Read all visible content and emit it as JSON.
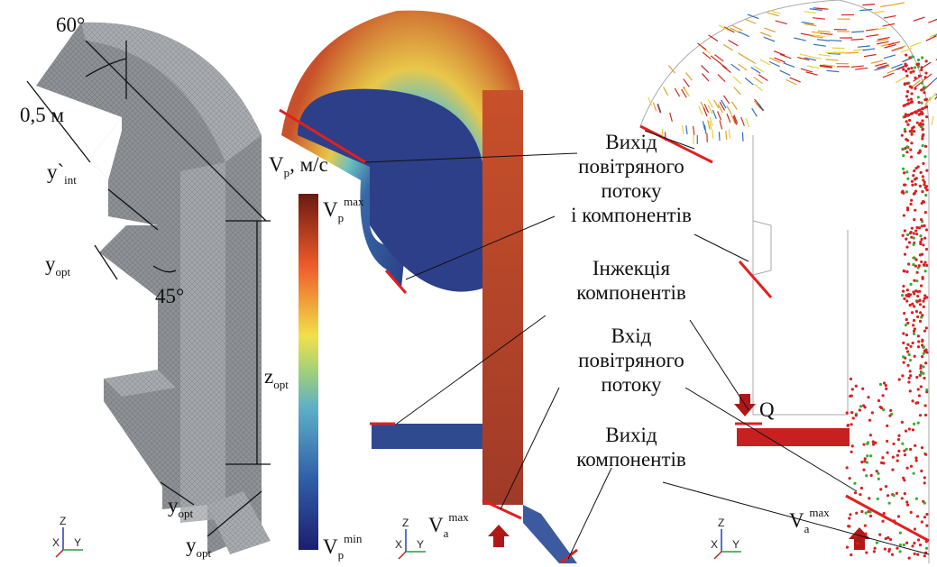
{
  "mesh_panel": {
    "angle_top": "60°",
    "length": "0,5 м",
    "y_int": {
      "base": "y`",
      "sub": "int"
    },
    "y_opt_side": {
      "base": "y",
      "sub": "opt"
    },
    "angle_side": "45°",
    "z_opt": {
      "base": "z",
      "sub": "opt"
    },
    "y_opt_bottom_1": {
      "base": "y",
      "sub": "opt"
    },
    "y_opt_bottom_2": {
      "base": "y",
      "sub": "opt"
    }
  },
  "colorbar": {
    "title": {
      "base": "V",
      "sub": "p",
      "suffix": ", м/с"
    },
    "max": {
      "base": "V",
      "sub": "p",
      "sup": "max"
    },
    "min": {
      "base": "V",
      "sub": "p",
      "sup": "min"
    }
  },
  "velocity_panel": {
    "inlet_label": {
      "base": "V",
      "sub": "a",
      "sup": "max"
    }
  },
  "particle_panel": {
    "inlet_label": {
      "base": "V",
      "sub": "a",
      "sup": "max"
    },
    "injection_rate": "Q"
  },
  "callouts": [
    {
      "lines": [
        "Вихід",
        "повітряного",
        "потоку",
        "і компонентів"
      ]
    },
    {
      "lines": [
        "Інжекція",
        "компонентів"
      ]
    },
    {
      "lines": [
        "Вхід",
        "повітряного",
        "потоку"
      ]
    },
    {
      "lines": [
        "Вихід",
        "компонентів"
      ]
    }
  ],
  "axes": [
    {
      "z": "Z",
      "x": "X",
      "y": "Y"
    },
    {
      "z": "Z",
      "x": "X",
      "y": "Y"
    },
    {
      "z": "Z",
      "x": "X",
      "y": "Y"
    }
  ]
}
